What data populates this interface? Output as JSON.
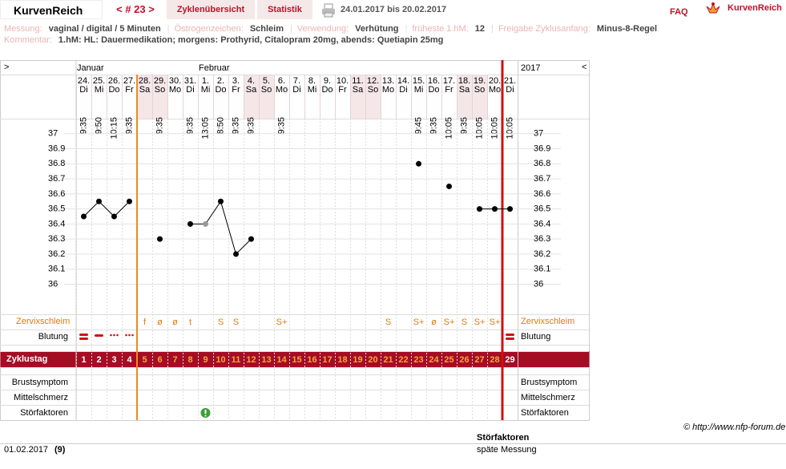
{
  "header": {
    "brand": "KurvenReich",
    "cycle": "< # 23 >",
    "nav": [
      "Zyklenübersicht",
      "Statistik"
    ],
    "date_range": "24.01.2017 bis 20.02.2017",
    "faq": "FAQ",
    "logo": "KurvenReich"
  },
  "info": [
    {
      "label": "Messung:",
      "value": "vaginal / digital / 5 Minuten"
    },
    {
      "label": "Östrogenzeichen:",
      "value": "Schleim"
    },
    {
      "label": "Verwendung:",
      "value": "Verhütung"
    },
    {
      "label": "früheste 1.hM:",
      "value": "12"
    },
    {
      "label": "Freigabe Zyklusanfang:",
      "value": "Minus-8-Regel"
    }
  ],
  "comment": {
    "label": "Kommentar:",
    "value": "1.hM: HL: Dauermedikation; morgens: Prothyrid, Citalopram 20mg, abends: Quetiapin 25mg"
  },
  "nav_prev": ">",
  "nav_next": "<",
  "months": [
    "Januar",
    "Februar"
  ],
  "year": "2017",
  "chart_data": {
    "type": "line",
    "categories": [
      "24.",
      "25.",
      "26.",
      "27.",
      "28.",
      "29.",
      "30.",
      "31.",
      "1.",
      "2.",
      "3.",
      "4.",
      "5.",
      "6.",
      "7.",
      "8.",
      "9.",
      "10.",
      "11.",
      "12.",
      "13.",
      "14.",
      "15.",
      "16.",
      "17.",
      "18.",
      "19.",
      "20.",
      "21."
    ],
    "weekdays": [
      "Di",
      "Mi",
      "Do",
      "Fr",
      "Sa",
      "So",
      "Mo",
      "Di",
      "Mi",
      "Do",
      "Fr",
      "Sa",
      "So",
      "Mo",
      "Di",
      "Mi",
      "Do",
      "Fr",
      "Sa",
      "So",
      "Mo",
      "Di",
      "Mi",
      "Do",
      "Fr",
      "Sa",
      "So",
      "Mo",
      "Di"
    ],
    "times": [
      "9:35",
      "9:50",
      "10:15",
      "9:35",
      null,
      "9:35",
      null,
      "9:35",
      "13:05",
      "8:50",
      "9:35",
      "9:35",
      null,
      "9:35",
      null,
      null,
      null,
      null,
      null,
      null,
      null,
      null,
      "9:45",
      "9:35",
      "10:05",
      "9:35",
      "10:05",
      "10:05",
      "10:05"
    ],
    "series": [
      {
        "color": "#000000",
        "values": [
          36.45,
          36.55,
          36.45,
          36.55,
          null,
          36.3,
          null,
          36.4,
          36.4,
          36.55,
          36.2,
          36.3,
          null,
          null,
          null,
          null,
          null,
          null,
          null,
          null,
          null,
          null,
          36.8,
          null,
          36.65,
          null,
          36.5,
          36.5,
          36.5
        ],
        "point_colors": [
          "#000000",
          "#000000",
          "#000000",
          "#000000",
          null,
          "#000000",
          null,
          "#000000",
          "#999999",
          "#000000",
          "#000000",
          "#000000",
          null,
          null,
          null,
          null,
          null,
          null,
          null,
          null,
          null,
          null,
          "#000000",
          null,
          "#000000",
          null,
          "#000000",
          "#000000",
          "#000000"
        ]
      }
    ],
    "ylim": [
      35.8,
      37.1
    ],
    "yticks": [
      36,
      36.1,
      36.2,
      36.3,
      36.4,
      36.5,
      36.6,
      36.7,
      36.8,
      36.9,
      37
    ],
    "grid": true
  },
  "cervix": [
    null,
    null,
    null,
    null,
    "f",
    "ø",
    "ø",
    "t",
    null,
    "S",
    "S",
    null,
    null,
    "S+",
    null,
    null,
    null,
    null,
    null,
    null,
    "S",
    null,
    "S+",
    "ø",
    "S+",
    "S",
    "S+",
    "S+",
    null
  ],
  "rows": {
    "left": [
      "Zervixschleim",
      "Blutung",
      "Brustsymptom",
      "Mittelschmerz",
      "Störfaktoren"
    ],
    "right": [
      "Zervixschleim",
      "Blutung",
      "Brustsymptom",
      "Mittelschmerz",
      "Störfaktoren"
    ]
  },
  "cycle_day_label": "Zyklustag",
  "cycle_days": [
    1,
    2,
    3,
    4,
    5,
    6,
    7,
    8,
    9,
    10,
    11,
    12,
    13,
    14,
    15,
    16,
    17,
    18,
    19,
    20,
    21,
    22,
    23,
    24,
    25,
    26,
    27,
    28,
    29
  ],
  "footer": {
    "copyright": "© http://www.nfp-forum.de",
    "date": "01.02.2017",
    "day": "(9)",
    "note_title": "Störfaktoren",
    "note": "späte Messung"
  }
}
